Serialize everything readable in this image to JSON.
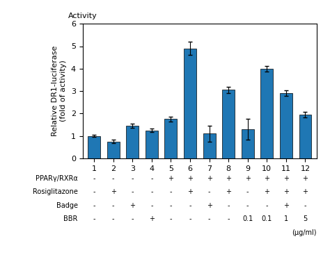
{
  "chart_data": {
    "type": "bar",
    "categories": [
      "1",
      "2",
      "3",
      "4",
      "5",
      "6",
      "7",
      "8",
      "9",
      "10",
      "11",
      "12"
    ],
    "values": [
      1.0,
      0.75,
      1.45,
      1.25,
      1.75,
      4.9,
      1.1,
      3.05,
      1.3,
      4.0,
      2.9,
      1.95
    ],
    "errors": [
      0.05,
      0.08,
      0.1,
      0.08,
      0.12,
      0.3,
      0.35,
      0.15,
      0.45,
      0.12,
      0.12,
      0.12
    ],
    "y_label": "Relative DR1-luciferase\n(fold of activity)",
    "annotations": [
      "Activity"
    ],
    "ylim": [
      0,
      6
    ],
    "yticks": [
      0,
      1,
      2,
      3,
      4,
      5,
      6
    ],
    "condition_rows": [
      {
        "name": "PPARγ/RXRα",
        "values": [
          "-",
          "-",
          "-",
          "-",
          "+",
          "+",
          "+",
          "+",
          "+",
          "+",
          "+",
          "+"
        ]
      },
      {
        "name": "Rosiglitazone",
        "values": [
          "-",
          "+",
          "-",
          "-",
          "-",
          "+",
          "-",
          "+",
          "-",
          "+",
          "+",
          "+"
        ]
      },
      {
        "name": "Badge",
        "values": [
          "-",
          "-",
          "+",
          "-",
          "-",
          "-",
          "+",
          "-",
          "-",
          "-",
          "+",
          "-"
        ]
      },
      {
        "name": "BBR",
        "values": [
          "-",
          "-",
          "-",
          "+",
          "-",
          "-",
          "-",
          "-",
          "0.1",
          "0.1",
          "1",
          "5"
        ]
      }
    ],
    "condition_unit": "(µg/ml)",
    "grid": false
  }
}
